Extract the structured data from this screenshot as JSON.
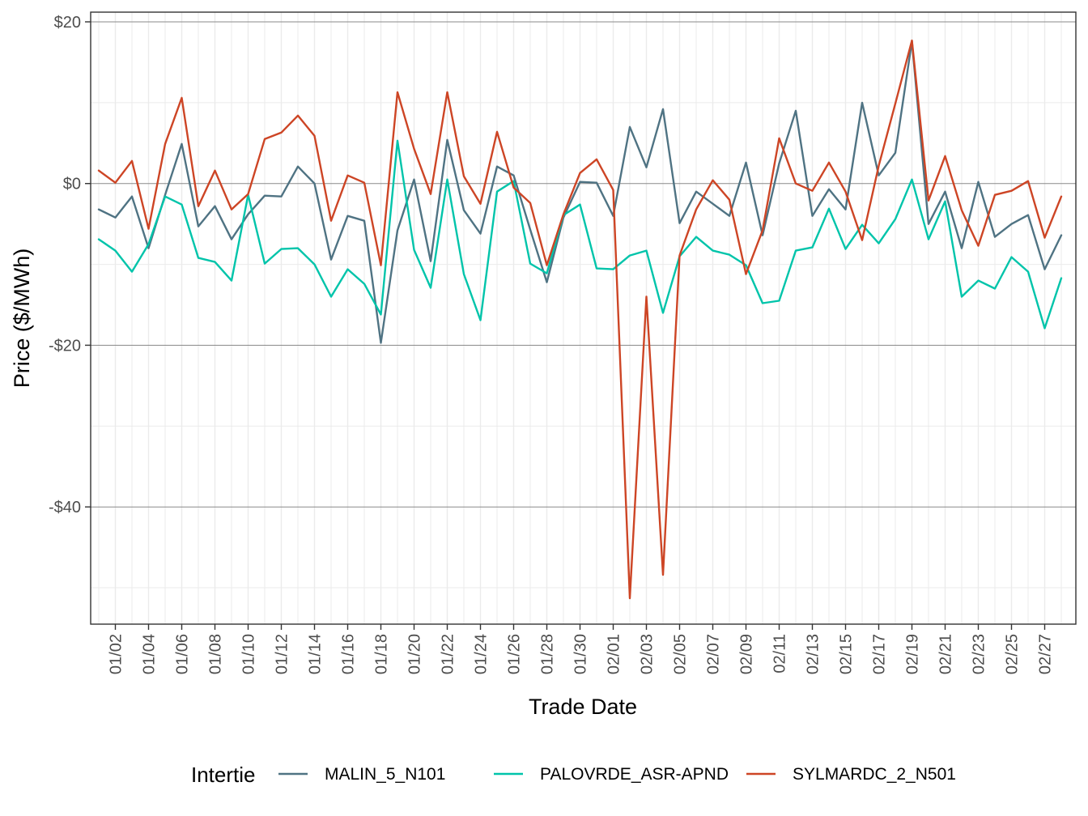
{
  "chart_data": {
    "type": "line",
    "xlabel": "Trade Date",
    "ylabel": "Price ($/MWh)",
    "ylim": [
      -54.5,
      21.2
    ],
    "y_ticks": [
      20,
      0,
      -20,
      -40
    ],
    "y_tick_labels": [
      "$20",
      "$0",
      "-$20",
      "-$40"
    ],
    "grid": true,
    "legend": {
      "title": "Intertie",
      "position": "bottom"
    },
    "x": [
      "01/01",
      "01/02",
      "01/03",
      "01/04",
      "01/05",
      "01/06",
      "01/07",
      "01/08",
      "01/09",
      "01/10",
      "01/11",
      "01/12",
      "01/13",
      "01/14",
      "01/15",
      "01/16",
      "01/17",
      "01/18",
      "01/19",
      "01/20",
      "01/21",
      "01/22",
      "01/23",
      "01/24",
      "01/25",
      "01/26",
      "01/27",
      "01/28",
      "01/29",
      "01/30",
      "01/31",
      "02/01",
      "02/02",
      "02/03",
      "02/04",
      "02/05",
      "02/06",
      "02/07",
      "02/08",
      "02/09",
      "02/10",
      "02/11",
      "02/12",
      "02/13",
      "02/14",
      "02/15",
      "02/16",
      "02/17",
      "02/18",
      "02/19",
      "02/20",
      "02/21",
      "02/22",
      "02/23",
      "02/24",
      "02/25",
      "02/26",
      "02/27",
      "02/28"
    ],
    "x_tick_labels": [
      "01/02",
      "01/04",
      "01/06",
      "01/08",
      "01/10",
      "01/12",
      "01/14",
      "01/16",
      "01/18",
      "01/20",
      "01/22",
      "01/24",
      "01/26",
      "01/28",
      "01/30",
      "02/01",
      "02/03",
      "02/05",
      "02/07",
      "02/09",
      "02/11",
      "02/13",
      "02/15",
      "02/17",
      "02/19",
      "02/21",
      "02/23",
      "02/25",
      "02/27"
    ],
    "series": [
      {
        "name": "MALIN_5_N101",
        "color": "#4f7383",
        "values": [
          -3.2,
          -4.2,
          -1.6,
          -8.0,
          -1.4,
          4.9,
          -5.3,
          -2.8,
          -6.9,
          -3.8,
          -1.5,
          -1.6,
          2.1,
          0.0,
          -9.4,
          -4.0,
          -4.6,
          -19.7,
          -5.8,
          0.5,
          -9.6,
          5.4,
          -3.3,
          -6.2,
          2.1,
          1.0,
          -5.7,
          -12.2,
          -4.2,
          0.2,
          0.1,
          -4.0,
          7.0,
          2.0,
          9.2,
          -4.9,
          -1.0,
          -2.5,
          -4.0,
          2.6,
          -6.4,
          2.5,
          9.0,
          -4.0,
          -0.7,
          -3.2,
          10.0,
          1.0,
          3.8,
          17.6,
          -5.0,
          -1.0,
          -8.0,
          0.2,
          -6.6,
          -5.0,
          -3.9,
          -10.6,
          -6.4
        ]
      },
      {
        "name": "PALOVRDE_ASR-APND",
        "color": "#00c4aa",
        "values": [
          -6.9,
          -8.3,
          -10.9,
          -7.5,
          -1.6,
          -2.6,
          -9.2,
          -9.7,
          -12.0,
          -1.4,
          -9.9,
          -8.1,
          -8.0,
          -10.0,
          -14.0,
          -10.6,
          -12.4,
          -16.2,
          5.3,
          -8.2,
          -12.9,
          0.5,
          -11.2,
          -16.9,
          -1.0,
          0.3,
          -9.9,
          -11.1,
          -3.9,
          -2.6,
          -10.5,
          -10.6,
          -8.9,
          -8.3,
          -16.0,
          -9.0,
          -6.6,
          -8.3,
          -8.8,
          -10.1,
          -14.8,
          -14.5,
          -8.3,
          -7.9,
          -3.1,
          -8.1,
          -5.1,
          -7.4,
          -4.4,
          0.5,
          -6.9,
          -2.2,
          -14.0,
          -12.0,
          -13.0,
          -9.1,
          -10.9,
          -17.9,
          -11.7
        ]
      },
      {
        "name": "SYLMARDC_2_N501",
        "color": "#cd4525",
        "values": [
          1.6,
          0.1,
          2.8,
          -5.6,
          4.9,
          10.6,
          -2.8,
          1.6,
          -3.2,
          -1.3,
          5.5,
          6.3,
          8.4,
          5.9,
          -4.6,
          1.0,
          0.1,
          -10.1,
          11.3,
          4.3,
          -1.3,
          11.3,
          0.9,
          -2.5,
          6.4,
          -0.5,
          -2.4,
          -10.1,
          -3.8,
          1.3,
          3.0,
          -0.8,
          -51.3,
          -14.0,
          -48.4,
          -8.9,
          -3.2,
          0.4,
          -2.0,
          -11.2,
          -5.8,
          5.6,
          0.0,
          -0.9,
          2.6,
          -1.0,
          -7.0,
          2.2,
          9.9,
          17.7,
          -2.1,
          3.4,
          -3.3,
          -7.7,
          -1.4,
          -0.9,
          0.3,
          -6.7,
          -1.6
        ]
      }
    ]
  }
}
